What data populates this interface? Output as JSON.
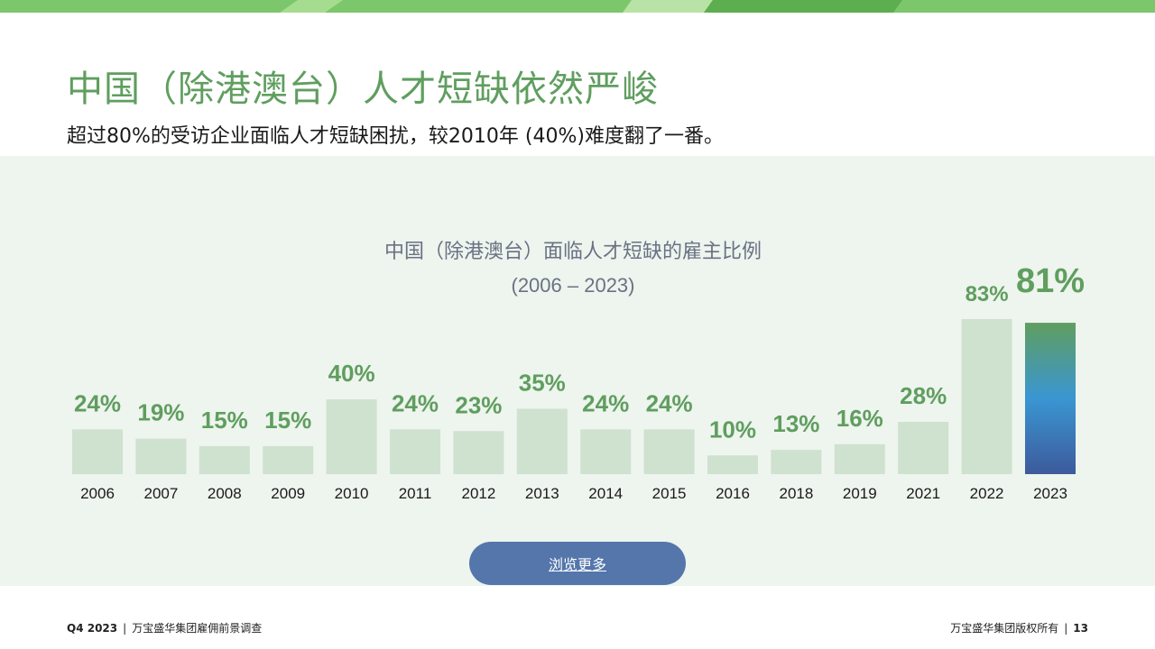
{
  "slide": {
    "title": "中国（除港澳台）人才短缺依然严峻",
    "subtitle": "超过80%的受访企业面临人才短缺困扰，较2010年 (40%)难度翻了一番。"
  },
  "chart_data": {
    "type": "bar",
    "title": "中国（除港澳台）面临人才短缺的雇主比例",
    "subtitle": "(2006 – 2023)",
    "categories": [
      "2006",
      "2007",
      "2008",
      "2009",
      "2010",
      "2011",
      "2012",
      "2013",
      "2014",
      "2015",
      "2016",
      "2018",
      "2019",
      "2021",
      "2022",
      "2023"
    ],
    "values": [
      24,
      19,
      15,
      15,
      40,
      24,
      23,
      35,
      24,
      24,
      10,
      13,
      16,
      28,
      83,
      81
    ],
    "labels": [
      "24%",
      "19%",
      "15%",
      "15%",
      "40%",
      "24%",
      "23%",
      "35%",
      "24%",
      "24%",
      "10%",
      "13%",
      "16%",
      "28%",
      "83%",
      "81%"
    ],
    "unit": "%",
    "highlight_index": 15,
    "ylim": [
      0,
      83
    ],
    "grid": false,
    "colors": {
      "bar": "#cfe1cf",
      "label": "#5f9e5f",
      "highlight_gradient": [
        "#5f9e5f",
        "#3a96d2",
        "#3d5a9c"
      ]
    }
  },
  "button": {
    "label": "浏览更多"
  },
  "footer": {
    "left_bold": "Q4 2023",
    "left_text": "万宝盛华集团雇佣前景调查",
    "right_text": "万宝盛华集团版权所有",
    "page_number": "13"
  }
}
